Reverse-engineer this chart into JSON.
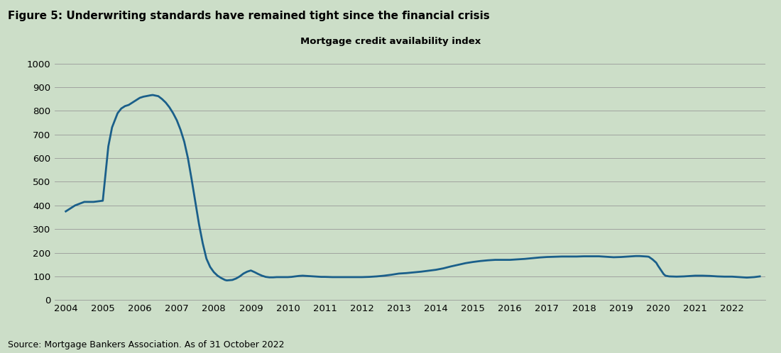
{
  "title": "Figure 5: Underwriting standards have remained tight since the financial crisis",
  "subtitle": "Mortgage credit availability index",
  "source": "Source: Mortgage Bankers Association. As of 31 October 2022",
  "line_color": "#1a5f8a",
  "bg_color": "#ccdec8",
  "line_width": 2.0,
  "ylim": [
    0,
    1000
  ],
  "yticks": [
    0,
    100,
    200,
    300,
    400,
    500,
    600,
    700,
    800,
    900,
    1000
  ],
  "x_years": [
    2004,
    2005,
    2006,
    2007,
    2008,
    2009,
    2010,
    2011,
    2012,
    2013,
    2014,
    2015,
    2016,
    2017,
    2018,
    2019,
    2020,
    2021,
    2022
  ],
  "xlim": [
    2003.7,
    2022.9
  ],
  "data": [
    [
      2004.0,
      375
    ],
    [
      2004.25,
      400
    ],
    [
      2004.5,
      415
    ],
    [
      2004.75,
      415
    ],
    [
      2005.0,
      420
    ],
    [
      2005.15,
      650
    ],
    [
      2005.25,
      730
    ],
    [
      2005.4,
      790
    ],
    [
      2005.5,
      810
    ],
    [
      2005.6,
      820
    ],
    [
      2005.7,
      825
    ],
    [
      2005.8,
      835
    ],
    [
      2005.9,
      845
    ],
    [
      2006.0,
      855
    ],
    [
      2006.1,
      860
    ],
    [
      2006.2,
      863
    ],
    [
      2006.3,
      866
    ],
    [
      2006.35,
      867
    ],
    [
      2006.5,
      862
    ],
    [
      2006.6,
      850
    ],
    [
      2006.7,
      835
    ],
    [
      2006.8,
      815
    ],
    [
      2006.9,
      790
    ],
    [
      2007.0,
      760
    ],
    [
      2007.1,
      720
    ],
    [
      2007.2,
      670
    ],
    [
      2007.3,
      600
    ],
    [
      2007.4,
      510
    ],
    [
      2007.5,
      415
    ],
    [
      2007.6,
      320
    ],
    [
      2007.7,
      240
    ],
    [
      2007.8,
      175
    ],
    [
      2007.9,
      140
    ],
    [
      2008.0,
      118
    ],
    [
      2008.1,
      103
    ],
    [
      2008.2,
      93
    ],
    [
      2008.3,
      85
    ],
    [
      2008.35,
      83
    ],
    [
      2008.5,
      85
    ],
    [
      2008.6,
      91
    ],
    [
      2008.7,
      100
    ],
    [
      2008.8,
      112
    ],
    [
      2008.9,
      120
    ],
    [
      2009.0,
      125
    ],
    [
      2009.1,
      118
    ],
    [
      2009.2,
      110
    ],
    [
      2009.3,
      103
    ],
    [
      2009.4,
      98
    ],
    [
      2009.5,
      96
    ],
    [
      2009.6,
      96
    ],
    [
      2009.7,
      97
    ],
    [
      2009.8,
      97
    ],
    [
      2009.9,
      97
    ],
    [
      2010.0,
      97
    ],
    [
      2010.1,
      98
    ],
    [
      2010.2,
      100
    ],
    [
      2010.3,
      102
    ],
    [
      2010.4,
      103
    ],
    [
      2010.5,
      102
    ],
    [
      2010.6,
      101
    ],
    [
      2010.7,
      100
    ],
    [
      2010.8,
      99
    ],
    [
      2010.9,
      98
    ],
    [
      2011.0,
      98
    ],
    [
      2011.2,
      97
    ],
    [
      2011.4,
      97
    ],
    [
      2011.6,
      97
    ],
    [
      2011.8,
      97
    ],
    [
      2012.0,
      97
    ],
    [
      2012.2,
      98
    ],
    [
      2012.4,
      100
    ],
    [
      2012.6,
      103
    ],
    [
      2012.8,
      107
    ],
    [
      2013.0,
      112
    ],
    [
      2013.2,
      114
    ],
    [
      2013.4,
      117
    ],
    [
      2013.6,
      120
    ],
    [
      2013.8,
      124
    ],
    [
      2014.0,
      128
    ],
    [
      2014.2,
      134
    ],
    [
      2014.4,
      142
    ],
    [
      2014.6,
      149
    ],
    [
      2014.8,
      156
    ],
    [
      2015.0,
      161
    ],
    [
      2015.2,
      165
    ],
    [
      2015.4,
      168
    ],
    [
      2015.6,
      170
    ],
    [
      2015.8,
      170
    ],
    [
      2016.0,
      170
    ],
    [
      2016.2,
      172
    ],
    [
      2016.4,
      174
    ],
    [
      2016.6,
      177
    ],
    [
      2016.8,
      180
    ],
    [
      2017.0,
      182
    ],
    [
      2017.2,
      183
    ],
    [
      2017.4,
      184
    ],
    [
      2017.6,
      184
    ],
    [
      2017.8,
      184
    ],
    [
      2018.0,
      185
    ],
    [
      2018.2,
      185
    ],
    [
      2018.4,
      185
    ],
    [
      2018.6,
      183
    ],
    [
      2018.8,
      181
    ],
    [
      2019.0,
      182
    ],
    [
      2019.2,
      184
    ],
    [
      2019.4,
      186
    ],
    [
      2019.5,
      186
    ],
    [
      2019.6,
      185
    ],
    [
      2019.7,
      184
    ],
    [
      2019.75,
      183
    ],
    [
      2019.85,
      172
    ],
    [
      2019.95,
      158
    ],
    [
      2020.0,
      145
    ],
    [
      2020.1,
      122
    ],
    [
      2020.15,
      110
    ],
    [
      2020.2,
      103
    ],
    [
      2020.3,
      100
    ],
    [
      2020.5,
      99
    ],
    [
      2020.7,
      100
    ],
    [
      2020.9,
      102
    ],
    [
      2021.0,
      103
    ],
    [
      2021.2,
      103
    ],
    [
      2021.4,
      102
    ],
    [
      2021.6,
      100
    ],
    [
      2021.8,
      99
    ],
    [
      2022.0,
      99
    ],
    [
      2022.2,
      97
    ],
    [
      2022.4,
      95
    ],
    [
      2022.6,
      97
    ],
    [
      2022.75,
      100
    ]
  ]
}
